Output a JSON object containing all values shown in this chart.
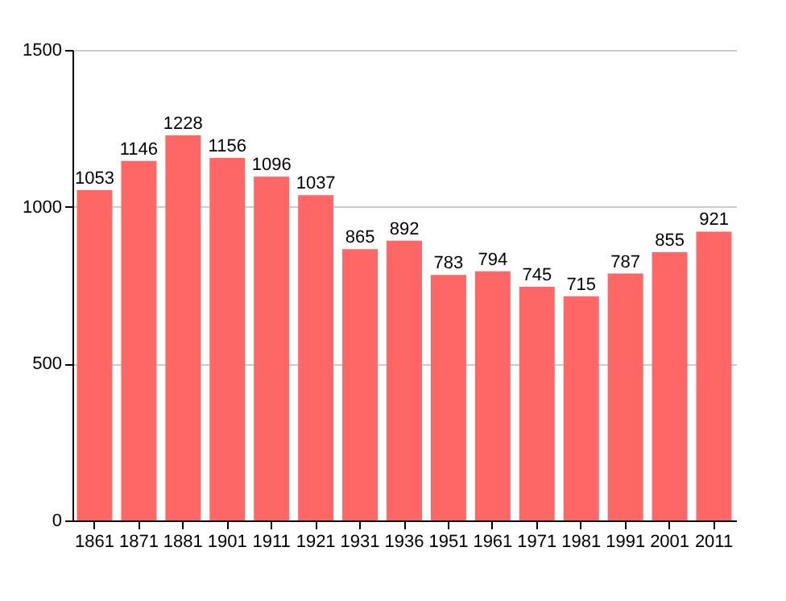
{
  "chart_data": {
    "type": "bar",
    "categories": [
      "1861",
      "1871",
      "1881",
      "1901",
      "1911",
      "1921",
      "1931",
      "1936",
      "1951",
      "1961",
      "1971",
      "1981",
      "1991",
      "2001",
      "2011"
    ],
    "values": [
      1053,
      1146,
      1228,
      1156,
      1096,
      1037,
      865,
      892,
      783,
      794,
      745,
      715,
      787,
      855,
      921
    ],
    "color": "#ff6666",
    "ylim": [
      0,
      1500
    ],
    "yticks": [
      0,
      500,
      1000,
      1500
    ],
    "grid": "y",
    "data_labels": true
  }
}
